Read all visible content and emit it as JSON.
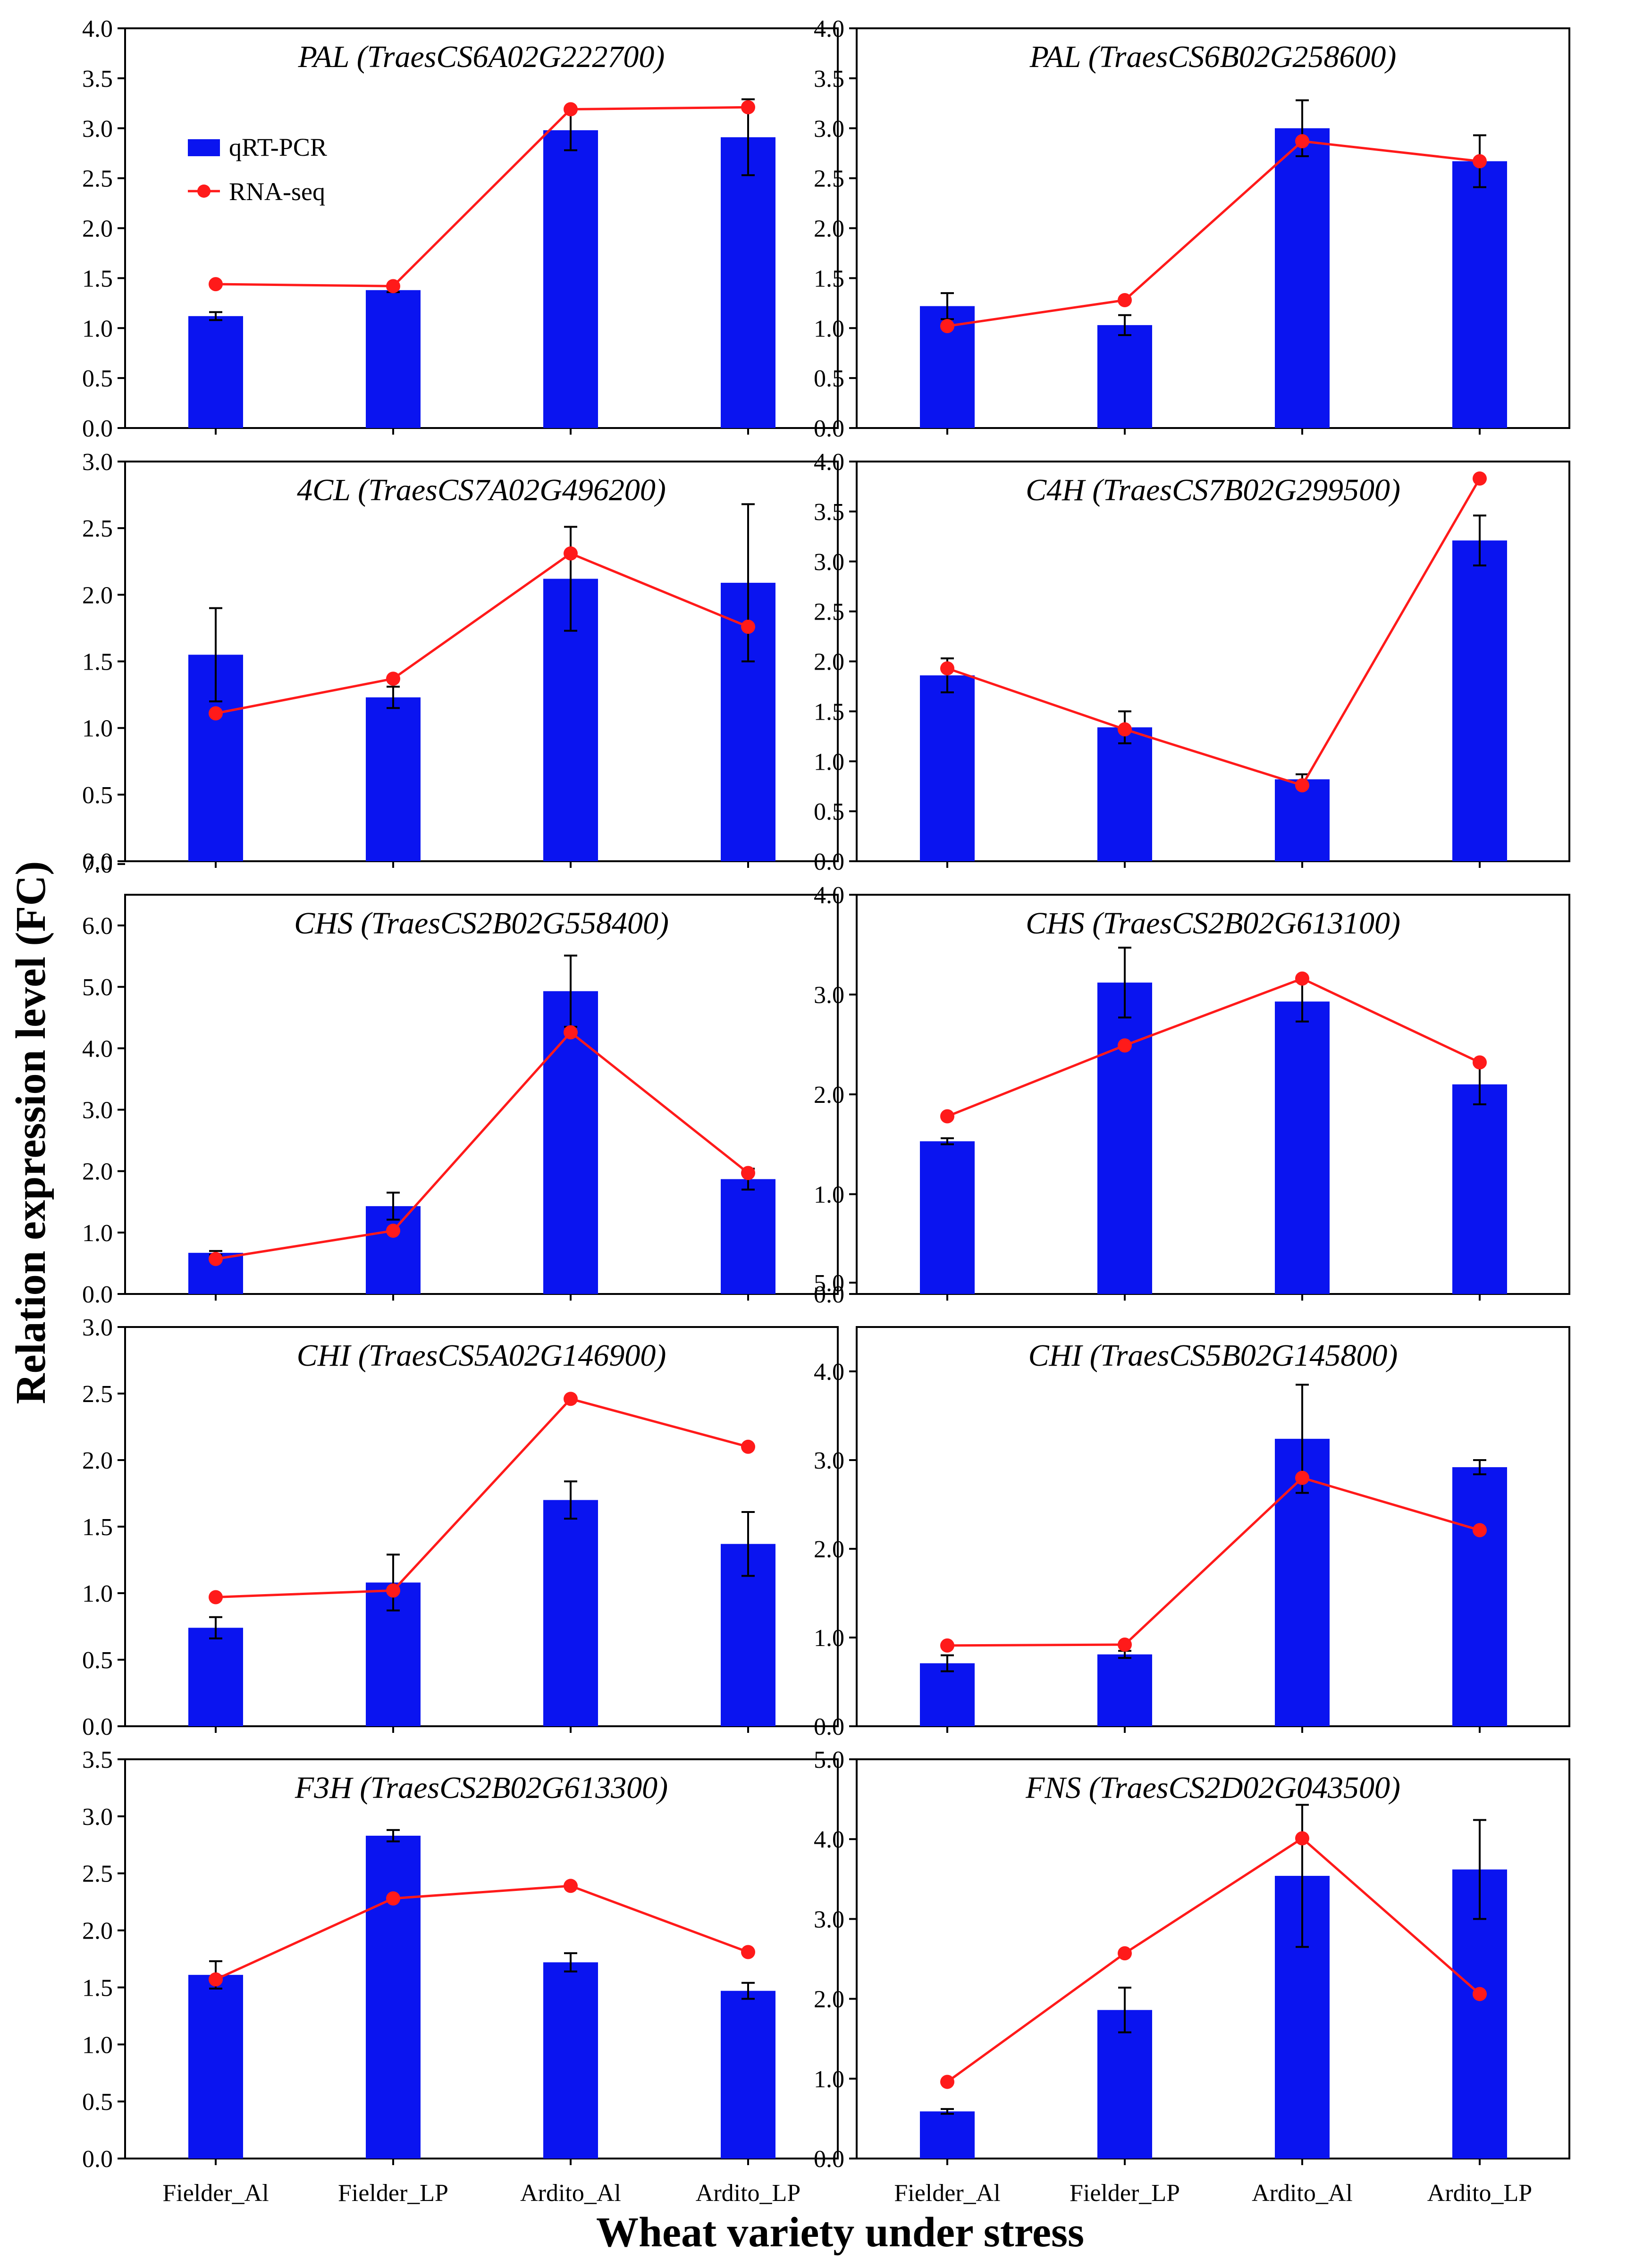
{
  "figure": {
    "ylabel": "Relation expression level (FC)",
    "xlabel": "Wheat variety under stress"
  },
  "legend": {
    "qrt": "qRT-PCR",
    "rna": "RNA-seq"
  },
  "colors": {
    "bar": "#0a14f0",
    "line": "#ff1a1a",
    "marker": "#ff1a1a",
    "error": "#000000"
  },
  "chart_data": [
    {
      "type": "bar",
      "title": "PAL (TraesCS6A02G222700)",
      "categories": [
        "Fielder_Al",
        "Fielder_LP",
        "Ardito_Al",
        "Ardito_LP"
      ],
      "ylim": [
        0,
        4.0
      ],
      "ystep": 0.5,
      "yformat": 1,
      "series": [
        {
          "name": "qRT-PCR",
          "values": [
            1.12,
            1.38,
            2.98,
            2.91
          ],
          "errors": [
            0.04,
            0.02,
            0.2,
            0.38
          ]
        },
        {
          "name": "RNA-seq",
          "values": [
            1.44,
            1.42,
            3.19,
            3.21
          ]
        }
      ]
    },
    {
      "type": "bar",
      "title": "PAL (TraesCS6B02G258600)",
      "categories": [
        "Fielder_Al",
        "Fielder_LP",
        "Ardito_Al",
        "Ardito_LP"
      ],
      "ylim": [
        0,
        4.0
      ],
      "ystep": 0.5,
      "yformat": 1,
      "series": [
        {
          "name": "qRT-PCR",
          "values": [
            1.22,
            1.03,
            3.0,
            2.67
          ],
          "errors": [
            0.13,
            0.1,
            0.28,
            0.26
          ]
        },
        {
          "name": "RNA-seq",
          "values": [
            1.02,
            1.28,
            2.87,
            2.67
          ]
        }
      ]
    },
    {
      "type": "bar",
      "title": "4CL (TraesCS7A02G496200)",
      "categories": [
        "Fielder_Al",
        "Fielder_LP",
        "Ardito_Al",
        "Ardito_LP"
      ],
      "ylim": [
        0,
        3.0
      ],
      "ystep": 0.5,
      "yformat": 1,
      "series": [
        {
          "name": "qRT-PCR",
          "values": [
            1.55,
            1.23,
            2.12,
            2.09
          ],
          "errors": [
            0.35,
            0.08,
            0.39,
            0.59
          ]
        },
        {
          "name": "RNA-seq",
          "values": [
            1.11,
            1.37,
            2.31,
            1.76
          ]
        }
      ]
    },
    {
      "type": "bar",
      "title": "C4H (TraesCS7B02G299500)",
      "categories": [
        "Fielder_Al",
        "Fielder_LP",
        "Ardito_Al",
        "Ardito_LP"
      ],
      "ylim": [
        0,
        4.0
      ],
      "ystep": 0.5,
      "yformat": 1,
      "series": [
        {
          "name": "qRT-PCR",
          "values": [
            1.86,
            1.34,
            0.82,
            3.21
          ],
          "errors": [
            0.17,
            0.16,
            0.05,
            0.25
          ]
        },
        {
          "name": "RNA-seq",
          "values": [
            1.93,
            1.32,
            0.76,
            3.83
          ]
        }
      ]
    },
    {
      "type": "bar",
      "title": "CHS (TraesCS2B02G558400)",
      "categories": [
        "Fielder_Al",
        "Fielder_LP",
        "Ardito_Al",
        "Ardito_LP"
      ],
      "ylim": [
        0,
        6.5
      ],
      "ystep": 1.0,
      "yformat": 1,
      "series": [
        {
          "name": "qRT-PCR",
          "values": [
            0.67,
            1.43,
            4.93,
            1.87
          ],
          "errors": [
            0.03,
            0.22,
            0.58,
            0.17
          ]
        },
        {
          "name": "RNA-seq",
          "values": [
            0.57,
            1.03,
            4.26,
            1.97
          ]
        }
      ]
    },
    {
      "type": "bar",
      "title": "CHS (TraesCS2B02G613100)",
      "categories": [
        "Fielder_Al",
        "Fielder_LP",
        "Ardito_Al",
        "Ardito_LP"
      ],
      "ylim": [
        0,
        4.0
      ],
      "ystep": 1.0,
      "yformat": 1,
      "series": [
        {
          "name": "qRT-PCR",
          "values": [
            1.53,
            3.12,
            2.93,
            2.1
          ],
          "errors": [
            0.03,
            0.35,
            0.2,
            0.2
          ]
        },
        {
          "name": "RNA-seq",
          "values": [
            1.78,
            2.49,
            3.16,
            2.32
          ]
        }
      ]
    },
    {
      "type": "bar",
      "title": "CHI (TraesCS5A02G146900)",
      "categories": [
        "Fielder_Al",
        "Fielder_LP",
        "Ardito_Al",
        "Ardito_LP"
      ],
      "ylim": [
        0,
        3.0
      ],
      "ystep": 0.5,
      "yformat": 1,
      "series": [
        {
          "name": "qRT-PCR",
          "values": [
            0.74,
            1.08,
            1.7,
            1.37
          ],
          "errors": [
            0.08,
            0.21,
            0.14,
            0.24
          ]
        },
        {
          "name": "RNA-seq",
          "values": [
            0.97,
            1.02,
            2.46,
            2.1
          ]
        }
      ]
    },
    {
      "type": "bar",
      "title": "CHI (TraesCS5B02G145800)",
      "categories": [
        "Fielder_Al",
        "Fielder_LP",
        "Ardito_Al",
        "Ardito_LP"
      ],
      "ylim": [
        0,
        4.5
      ],
      "ystep": 1.0,
      "yformat": 1,
      "series": [
        {
          "name": "qRT-PCR",
          "values": [
            0.71,
            0.81,
            3.24,
            2.92
          ],
          "errors": [
            0.09,
            0.04,
            0.61,
            0.08
          ]
        },
        {
          "name": "RNA-seq",
          "values": [
            0.91,
            0.92,
            2.8,
            2.21
          ]
        }
      ]
    },
    {
      "type": "bar",
      "title": "F3H (TraesCS2B02G613300)",
      "categories": [
        "Fielder_Al",
        "Fielder_LP",
        "Ardito_Al",
        "Ardito_LP"
      ],
      "ylim": [
        0,
        3.5
      ],
      "ystep": 0.5,
      "yformat": 1,
      "series": [
        {
          "name": "qRT-PCR",
          "values": [
            1.61,
            2.83,
            1.72,
            1.47
          ],
          "errors": [
            0.12,
            0.05,
            0.08,
            0.07
          ]
        },
        {
          "name": "RNA-seq",
          "values": [
            1.57,
            2.28,
            2.39,
            1.81
          ]
        }
      ]
    },
    {
      "type": "bar",
      "title": "FNS (TraesCS2D02G043500)",
      "categories": [
        "Fielder_Al",
        "Fielder_LP",
        "Ardito_Al",
        "Ardito_LP"
      ],
      "ylim": [
        0,
        5.0
      ],
      "ystep": 1.0,
      "yformat": 1,
      "series": [
        {
          "name": "qRT-PCR",
          "values": [
            0.59,
            1.86,
            3.54,
            3.62
          ],
          "errors": [
            0.03,
            0.28,
            0.89,
            0.62
          ]
        },
        {
          "name": "RNA-seq",
          "values": [
            0.96,
            2.57,
            4.01,
            2.06
          ]
        }
      ]
    }
  ]
}
